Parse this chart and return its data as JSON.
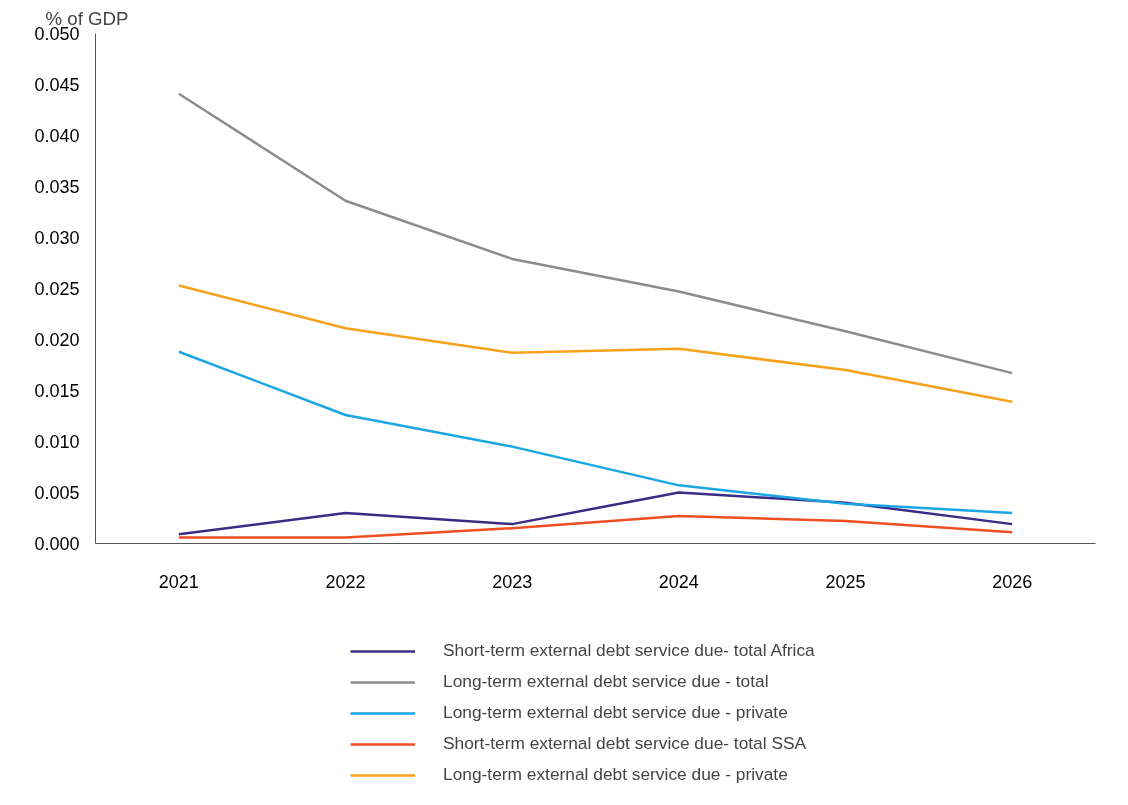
{
  "chart_data": {
    "type": "line",
    "ylabel": "% of GDP",
    "categories": [
      "2021",
      "2022",
      "2023",
      "2024",
      "2025",
      "2026"
    ],
    "ylim": [
      0,
      0.05
    ],
    "yticks": [
      {
        "value": 0,
        "label": "0.000"
      },
      {
        "value": 0.005,
        "label": "0.005"
      },
      {
        "value": 0.01,
        "label": "0.010"
      },
      {
        "value": 0.015,
        "label": "0.015"
      },
      {
        "value": 0.02,
        "label": "0.020"
      },
      {
        "value": 0.025,
        "label": "0.025"
      },
      {
        "value": 0.03,
        "label": "0.030"
      },
      {
        "value": 0.035,
        "label": "0.035"
      },
      {
        "value": 0.04,
        "label": "0.040"
      },
      {
        "value": 0.045,
        "label": "0.045"
      },
      {
        "value": 0.05,
        "label": "0.050"
      }
    ],
    "grid": false,
    "legend": "bottom",
    "marker": "none",
    "line_style": "solid",
    "series": [
      {
        "name": "Short-term external debt service due- total Africa",
        "color": "#3a2c85",
        "values": [
          0.0009,
          0.003,
          0.0019,
          0.005,
          0.004,
          0.0019
        ]
      },
      {
        "name": "Long-term external debt service due - total",
        "color": "#8c8c8c",
        "values": [
          0.0441,
          0.0336,
          0.0279,
          0.0247,
          0.0208,
          0.0167
        ]
      },
      {
        "name": "Long-term external debt service due - private",
        "color": "#1aa6e4",
        "values": [
          0.0188,
          0.0126,
          0.0095,
          0.0057,
          0.0039,
          0.003
        ]
      },
      {
        "name": "Short-term external debt service due- total SSA",
        "color": "#f04e23",
        "values": [
          0.0006,
          0.0006,
          0.0015,
          0.0027,
          0.0022,
          0.0011
        ]
      },
      {
        "name": "Long-term external debt service due - private",
        "color": "#f7a11a",
        "values": [
          0.0253,
          0.0211,
          0.0187,
          0.0191,
          0.017,
          0.0139
        ]
      }
    ]
  }
}
